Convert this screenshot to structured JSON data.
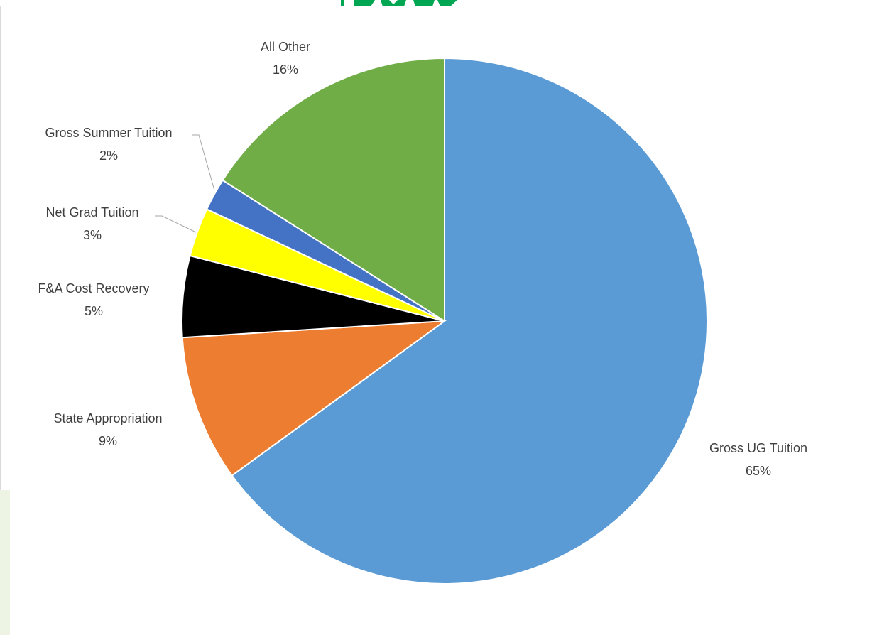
{
  "chart_data": {
    "type": "pie",
    "title": "",
    "slices": [
      {
        "label": "Gross UG Tuition",
        "pct_label": "65%",
        "value": 65,
        "color": "#5b9bd5"
      },
      {
        "label": "State Appropriation",
        "pct_label": "9%",
        "value": 9,
        "color": "#ed7d31"
      },
      {
        "label": "F&A Cost Recovery",
        "pct_label": "5%",
        "value": 5,
        "color": "#000000"
      },
      {
        "label": "Net Grad Tuition",
        "pct_label": "3%",
        "value": 3,
        "color": "#ffff00"
      },
      {
        "label": "Gross Summer Tuition",
        "pct_label": "2%",
        "value": 2,
        "color": "#4472c4"
      },
      {
        "label": "All Other",
        "pct_label": "16%",
        "value": 16,
        "color": "#70ad47"
      }
    ],
    "legend": "none",
    "start": "12 o'clock, clockwise"
  }
}
